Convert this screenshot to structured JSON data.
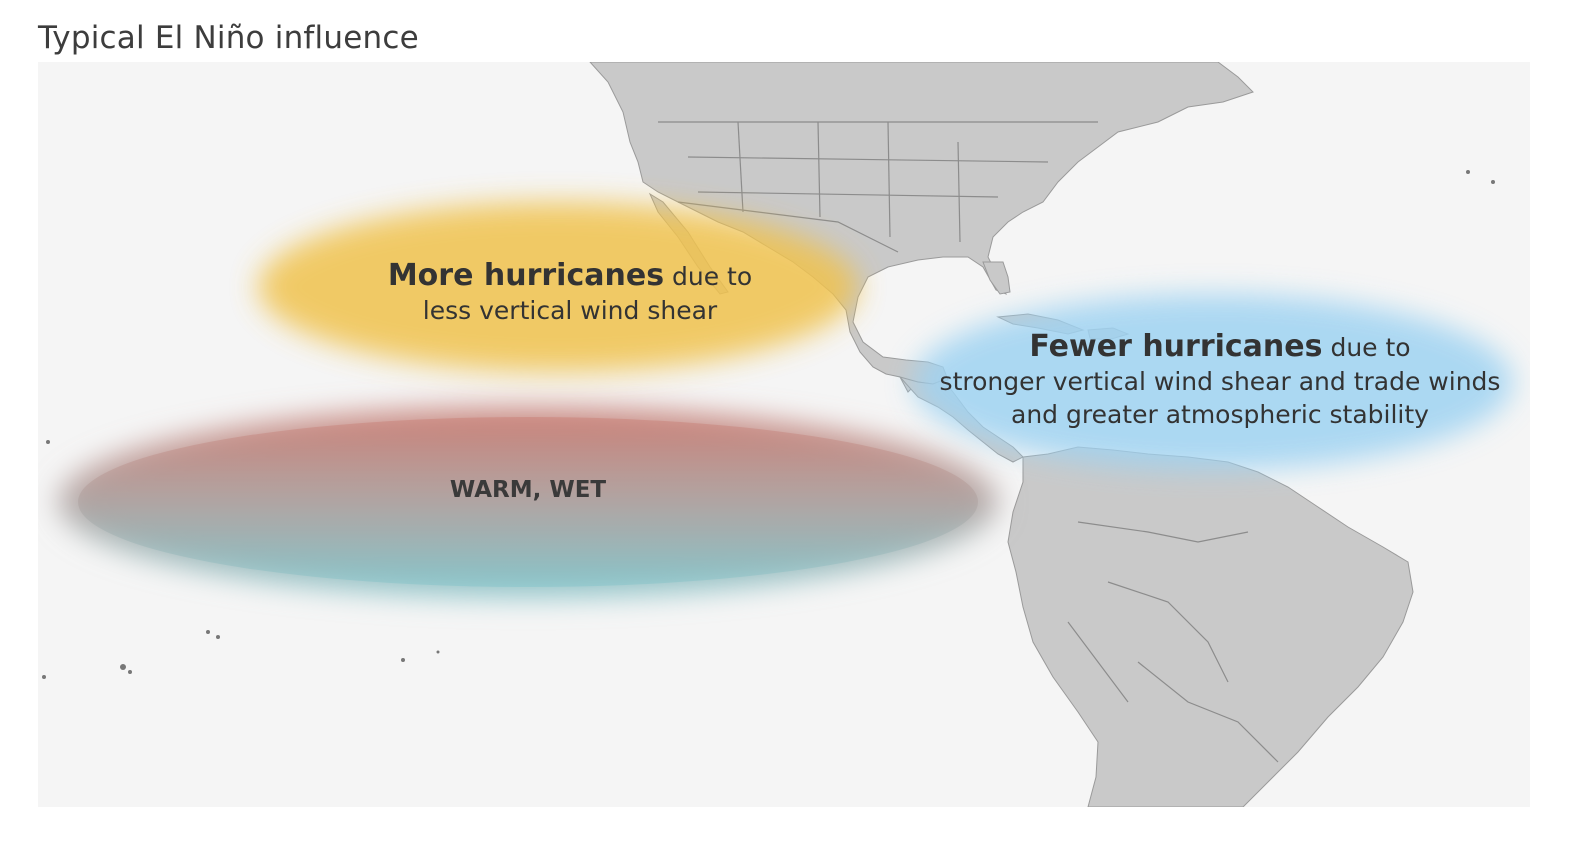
{
  "title": "Typical El Niño influence",
  "regions": {
    "pacific_north": {
      "headline": "More hurricanes",
      "suffix": " due to",
      "line2": "less vertical wind shear",
      "color": "#f0c24e"
    },
    "atlantic": {
      "headline": "Fewer hurricanes",
      "suffix": " due to",
      "line2": "stronger vertical wind shear and trade winds",
      "line3": "and greater atmospheric stability",
      "color": "#9fd3f2"
    },
    "pacific_equator": {
      "label": "WARM, WET",
      "color_top": "#c97a70",
      "color_bottom": "#7fc3c9"
    }
  },
  "colors": {
    "land": "#c9c9c9",
    "ocean": "#f5f5f5",
    "borders": "#888888"
  }
}
